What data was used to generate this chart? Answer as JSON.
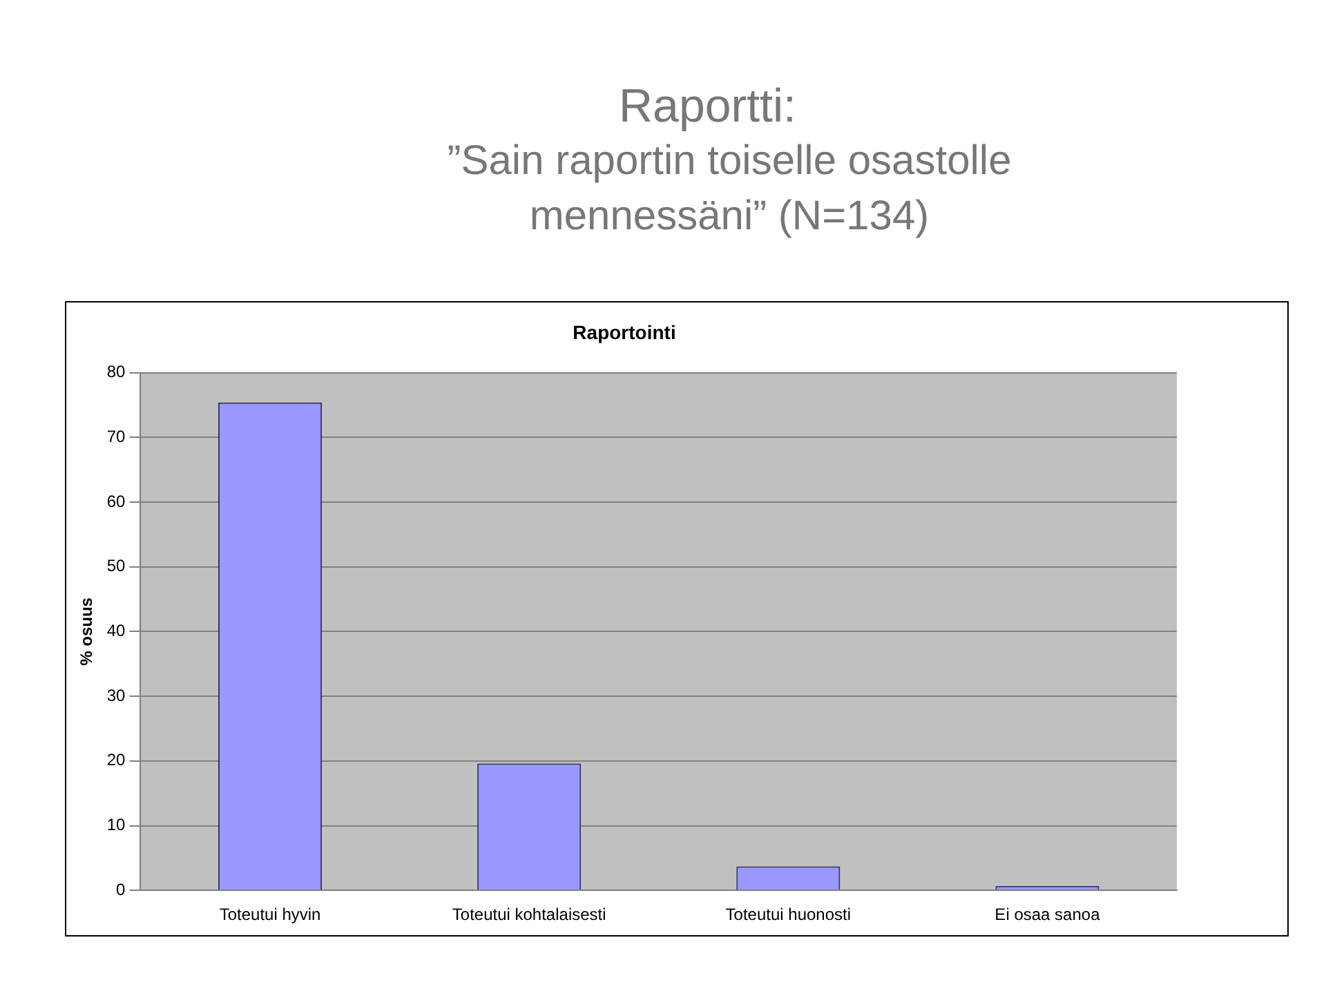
{
  "chart_data": {
    "type": "bar",
    "title": "Raportti:",
    "subtitle": "”Sain raportin toiselle osastolle mennessäni” (N=134)",
    "annotations": [
      "Raportointi"
    ],
    "ylabel": "% osuus",
    "categories": [
      "Toteutui hyvin",
      "Toteutui kohtalaisesti",
      "Toteutui huonosti",
      "Ei osaa sanoa"
    ],
    "values": [
      75.4,
      19.6,
      3.7,
      0.7
    ],
    "color": "#9999ff",
    "ylim": [
      0,
      80
    ],
    "yticks": [
      0,
      10,
      20,
      30,
      40,
      50,
      60,
      70,
      80
    ],
    "grid": "y",
    "legend": false
  }
}
